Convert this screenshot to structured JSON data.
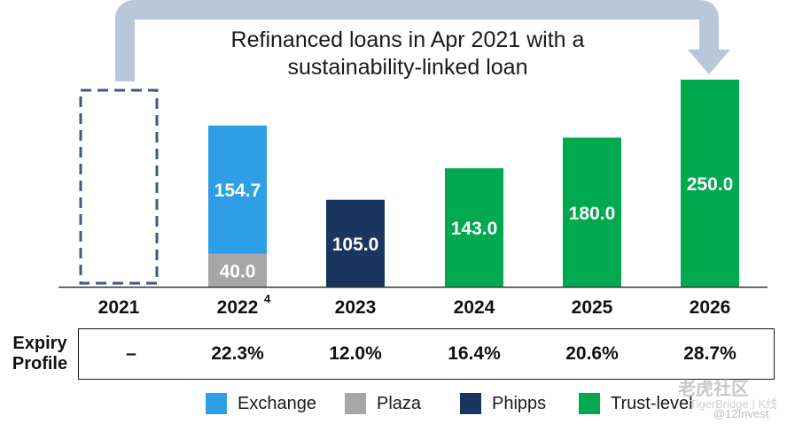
{
  "chart_data": {
    "type": "bar",
    "title": "Refinanced loans in Apr 2021 with a sustainability-linked loan",
    "title_lines": [
      "Refinanced loans in Apr 2021 with a",
      "sustainability-linked loan"
    ],
    "categories": [
      "2021",
      "2022",
      "2023",
      "2024",
      "2025",
      "2026"
    ],
    "category_superscripts": [
      "",
      "4",
      "",
      "",
      "",
      ""
    ],
    "stacked": true,
    "series": [
      {
        "name": "Plaza",
        "color": "#a6a6a6",
        "values": [
          null,
          40.0,
          null,
          null,
          null,
          null
        ]
      },
      {
        "name": "Exchange",
        "color": "#2e9fe6",
        "values": [
          null,
          154.7,
          null,
          null,
          null,
          null
        ]
      },
      {
        "name": "Phipps",
        "color": "#1a3560",
        "values": [
          null,
          null,
          105.0,
          null,
          null,
          null
        ]
      },
      {
        "name": "Trust-level",
        "color": "#00a94f",
        "values": [
          null,
          null,
          null,
          143.0,
          180.0,
          250.0
        ]
      }
    ],
    "dashed_placeholder_category": "2021",
    "ylim": [
      0,
      260
    ],
    "grid": false,
    "legend_position": "bottom"
  },
  "profile": {
    "label_line1": "Expiry",
    "label_line2": "Profile",
    "values": [
      "–",
      "22.3%",
      "12.0%",
      "16.4%",
      "20.6%",
      "28.7%"
    ]
  },
  "legend": [
    {
      "name": "Exchange",
      "color": "#2e9fe6"
    },
    {
      "name": "Plaza",
      "color": "#a6a6a6"
    },
    {
      "name": "Phipps",
      "color": "#1a3560"
    },
    {
      "name": "Trust-level",
      "color": "#00a94f"
    }
  ],
  "watermark": {
    "brand": "老虎社区",
    "sub": "TigerBridge | K线",
    "handle": "@12Invest"
  },
  "colors": {
    "arrow": "#b8c7d9",
    "dashed": "#3c5a80",
    "axis": "#333333"
  }
}
